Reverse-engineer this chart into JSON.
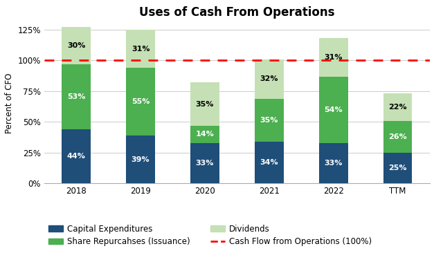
{
  "title": "Uses of Cash From Operations",
  "categories": [
    "2018",
    "2019",
    "2020",
    "2021",
    "2022",
    "TTM"
  ],
  "capex": [
    44,
    39,
    33,
    34,
    33,
    25
  ],
  "share_repurchases": [
    53,
    55,
    14,
    35,
    54,
    26
  ],
  "dividends": [
    30,
    31,
    35,
    32,
    31,
    22
  ],
  "capex_color": "#1F4E79",
  "share_color": "#4CAF50",
  "dividends_color": "#C5E0B4",
  "bar_width": 0.45,
  "ylabel": "Percent of CFO",
  "ylim": [
    0,
    130
  ],
  "yticks": [
    0,
    25,
    50,
    75,
    100,
    125
  ],
  "ytick_labels": [
    "0%",
    "25%",
    "50%",
    "75%",
    "100%",
    "125%"
  ],
  "hline_y": 100,
  "hline_color": "red",
  "legend_labels": [
    "Capital Expenditures",
    "Share Repurcahses (Issuance)",
    "Dividends",
    "Cash Flow from Operations (100%)"
  ],
  "title_fontsize": 12,
  "label_fontsize": 8.5,
  "tick_fontsize": 8.5,
  "bar_label_fontsize": 8,
  "bg_color": "#FFFFFF",
  "grid_color": "#CCCCCC"
}
